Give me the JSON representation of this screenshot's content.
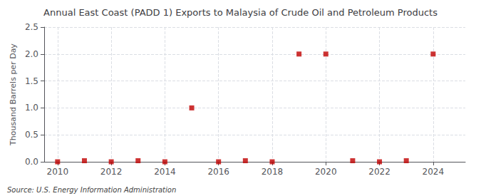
{
  "chart_data": {
    "type": "scatter",
    "title": "Annual East Coast (PADD 1) Exports to Malaysia of Crude Oil and Petroleum Products",
    "ylabel": "Thousand Barrels per Day",
    "source": "Source: U.S. Energy Information Administration",
    "x": [
      2010,
      2011,
      2012,
      2013,
      2014,
      2015,
      2016,
      2017,
      2018,
      2019,
      2020,
      2021,
      2022,
      2023,
      2024
    ],
    "values": [
      0.0,
      0.02,
      0.0,
      0.02,
      0.0,
      1.0,
      0.0,
      0.02,
      0.0,
      2.0,
      2.0,
      0.02,
      0.0,
      0.02,
      2.0
    ],
    "color": "#c00000",
    "marker": "square",
    "xlim": [
      2009.5,
      2025.2
    ],
    "xticks": [
      2010,
      2012,
      2014,
      2016,
      2018,
      2020,
      2022,
      2024
    ],
    "ylim": [
      0.0,
      2.5
    ],
    "yticks": [
      {
        "value": 0.0,
        "label": "0.0"
      },
      0.5,
      {
        "value": 1.0,
        "label": "1.0"
      },
      1.5,
      {
        "value": 2.0,
        "label": "2.0"
      },
      2.5
    ],
    "grid": true
  }
}
